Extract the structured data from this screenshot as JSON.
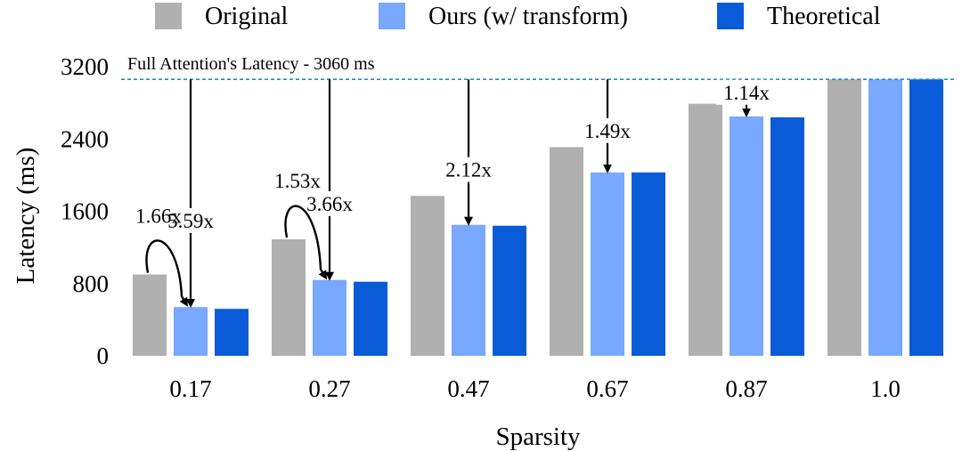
{
  "chart_data": {
    "type": "bar",
    "xlabel": "Sparsity",
    "ylabel": "Latency (ms)",
    "ylim": [
      0,
      3200
    ],
    "yticks": [
      0,
      800,
      1600,
      2400,
      3200
    ],
    "categories": [
      "0.17",
      "0.27",
      "0.47",
      "0.67",
      "0.87",
      "1.0"
    ],
    "series": [
      {
        "name": "Original",
        "color": "#b0b0b0",
        "values": [
          900,
          1290,
          1770,
          2310,
          2790,
          3060
        ]
      },
      {
        "name": "Ours (w/ transform)",
        "color": "#78a8ff",
        "values": [
          540,
          840,
          1450,
          2030,
          2650,
          3060
        ]
      },
      {
        "name": "Theoretical",
        "color": "#0a5bd8",
        "values": [
          520,
          820,
          1440,
          2030,
          2640,
          3060
        ]
      }
    ],
    "legend_position": "top",
    "reference_line": {
      "value": 3060,
      "label": "Full Attention's Latency - 3060 ms",
      "color": "#1c8fc7"
    },
    "annotations": {
      "vs_full_attention": [
        {
          "category": "0.17",
          "text": "5.59x"
        },
        {
          "category": "0.27",
          "text": "3.66x"
        },
        {
          "category": "0.47",
          "text": "2.12x"
        },
        {
          "category": "0.67",
          "text": "1.49x"
        },
        {
          "category": "0.87",
          "text": "1.14x"
        }
      ],
      "vs_original": [
        {
          "category": "0.17",
          "text": "1.66x"
        },
        {
          "category": "0.27",
          "text": "1.53x"
        }
      ]
    }
  }
}
